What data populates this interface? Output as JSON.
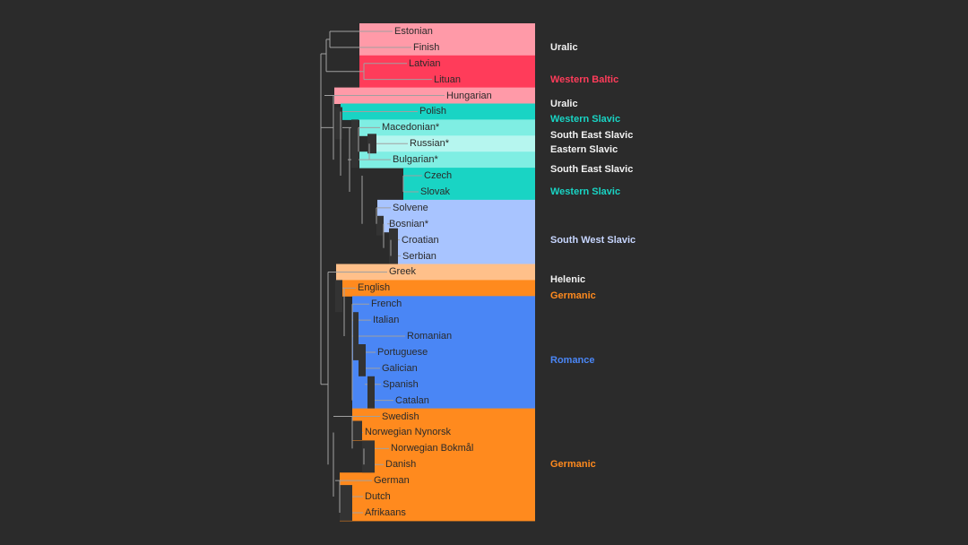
{
  "colors": {
    "background": "#2b2b2b",
    "uralic": "#ff9aa8",
    "western_baltic": "#ff3c5a",
    "slavic_teal": "#19d4c4",
    "slavic_light_teal": "#7feee3",
    "slavic_pale_teal": "#b6f6ef",
    "south_west_slavic": "#a8c4ff",
    "helenic": "#ffc08a",
    "germanic": "#ff8a1e",
    "romance": "#4a86f5",
    "tree_line": "#a0a0a0"
  },
  "leaves": [
    {
      "label": "Estonian",
      "color": "uralic"
    },
    {
      "label": "Finish",
      "color": "uralic"
    },
    {
      "label": "Latvian",
      "color": "western_baltic"
    },
    {
      "label": "Lituan",
      "color": "western_baltic"
    },
    {
      "label": "Hungarian",
      "color": "uralic"
    },
    {
      "label": "Polish",
      "color": "slavic_teal"
    },
    {
      "label": "Macedonian*",
      "color": "slavic_light_teal"
    },
    {
      "label": "Russian*",
      "color": "slavic_pale_teal"
    },
    {
      "label": "Bulgarian*",
      "color": "slavic_light_teal"
    },
    {
      "label": "Czech",
      "color": "slavic_teal"
    },
    {
      "label": "Slovak",
      "color": "slavic_teal"
    },
    {
      "label": "Solvene",
      "color": "south_west_slavic"
    },
    {
      "label": "Bosnian*",
      "color": "south_west_slavic"
    },
    {
      "label": "Croatian",
      "color": "south_west_slavic"
    },
    {
      "label": "Serbian",
      "color": "south_west_slavic"
    },
    {
      "label": "Greek",
      "color": "helenic"
    },
    {
      "label": "English",
      "color": "germanic"
    },
    {
      "label": "French",
      "color": "romance"
    },
    {
      "label": "Italian",
      "color": "romance"
    },
    {
      "label": "Romanian",
      "color": "romance"
    },
    {
      "label": "Portuguese",
      "color": "romance"
    },
    {
      "label": "Galician",
      "color": "romance"
    },
    {
      "label": "Spanish",
      "color": "romance"
    },
    {
      "label": "Catalan",
      "color": "romance"
    },
    {
      "label": "Swedish",
      "color": "germanic"
    },
    {
      "label": "Norwegian Nynorsk",
      "color": "germanic"
    },
    {
      "label": "Norwegian Bokmål",
      "color": "germanic"
    },
    {
      "label": "Danish",
      "color": "germanic"
    },
    {
      "label": "German",
      "color": "germanic"
    },
    {
      "label": "Dutch",
      "color": "germanic"
    },
    {
      "label": "Afrikaans",
      "color": "germanic"
    }
  ],
  "groups": [
    {
      "label": "Uralic",
      "color": "#f2f2f2"
    },
    {
      "label": "Western Baltic",
      "color": "#ff3c5a"
    },
    {
      "label": "Uralic",
      "color": "#f2f2f2"
    },
    {
      "label": "Western Slavic",
      "color": "#19d4c4"
    },
    {
      "label": "South East Slavic",
      "color": "#f2f2f2"
    },
    {
      "label": "Eastern Slavic",
      "color": "#f2f2f2"
    },
    {
      "label": "South East Slavic",
      "color": "#f2f2f2"
    },
    {
      "label": "Western Slavic",
      "color": "#19d4c4"
    },
    {
      "label": "South West Slavic",
      "color": "#c7d6ff"
    },
    {
      "label": "Helenic",
      "color": "#f2f2f2"
    },
    {
      "label": "Germanic",
      "color": "#ff8a1e"
    },
    {
      "label": "Romance",
      "color": "#4a86f5"
    },
    {
      "label": "Germanic",
      "color": "#ff8a1e"
    }
  ]
}
